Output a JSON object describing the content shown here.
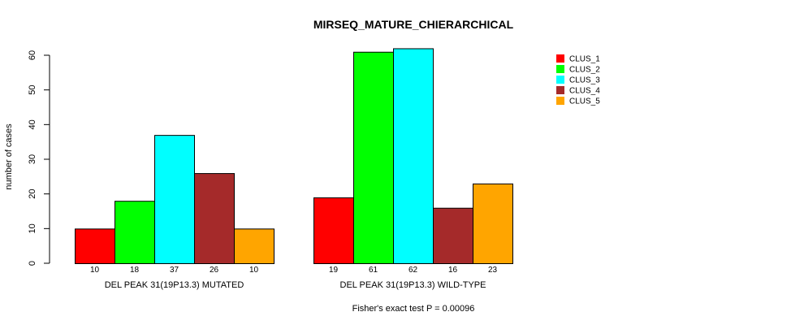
{
  "chart_data": {
    "type": "bar",
    "title": "MIRSEQ_MATURE_CHIERARCHICAL",
    "ylabel": "number of cases",
    "ylim": [
      0,
      60
    ],
    "yticks": [
      0,
      10,
      20,
      30,
      40,
      50,
      60
    ],
    "categories": [
      "DEL PEAK 31(19P13.3) MUTATED",
      "DEL PEAK 31(19P13.3) WILD-TYPE"
    ],
    "series": [
      {
        "name": "CLUS_1",
        "color": "#ff0000",
        "values": [
          10,
          19
        ]
      },
      {
        "name": "CLUS_2",
        "color": "#00ff00",
        "values": [
          18,
          61
        ]
      },
      {
        "name": "CLUS_3",
        "color": "#00ffff",
        "values": [
          37,
          62
        ]
      },
      {
        "name": "CLUS_4",
        "color": "#a52a2a",
        "values": [
          26,
          16
        ]
      },
      {
        "name": "CLUS_5",
        "color": "#ffa500",
        "values": [
          10,
          23
        ]
      }
    ],
    "legend_position": "top-right",
    "footnote": "Fisher's exact test P = 0.00096"
  }
}
